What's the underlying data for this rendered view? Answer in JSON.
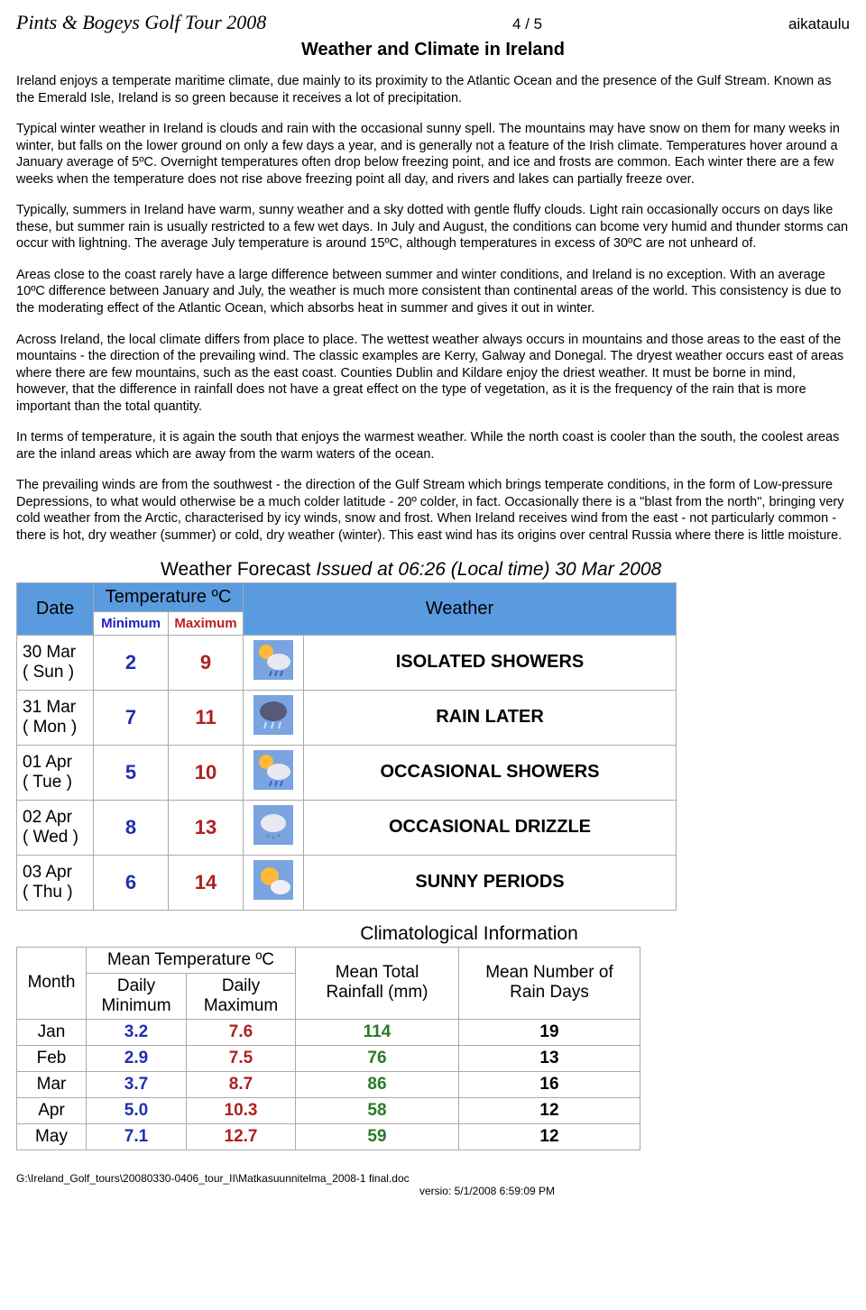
{
  "header": {
    "tour_title": "Pints & Bogeys Golf Tour 2008",
    "page_num": "4 / 5",
    "right_label": "aikataulu"
  },
  "title": "Weather and Climate in Ireland",
  "paragraphs": [
    "Ireland enjoys a temperate maritime climate, due mainly to its proximity to the Atlantic Ocean and the presence of the Gulf Stream. Known as the Emerald Isle, Ireland is so green because it receives a lot of precipitation.",
    "Typical winter weather in Ireland is clouds and rain with the occasional sunny spell. The mountains may have snow on them for many weeks in winter, but falls on the lower ground on only a few days a year, and is generally not a feature of the Irish climate. Temperatures hover around a January average of 5ºC. Overnight temperatures often drop below freezing point, and ice and frosts are common. Each winter there are a few weeks when the temperature does not rise above freezing point all day, and rivers and lakes can partially freeze over.",
    "Typically, summers in Ireland have warm, sunny weather and a sky dotted with gentle fluffy clouds. Light rain occasionally occurs on days like these, but summer rain is usually restricted to a few wet days. In July and August, the conditions can bcome very humid and thunder storms can occur with lightning. The average July temperature is around 15ºC, although temperatures in excess of 30ºC are not unheard of.",
    "Areas close to the coast rarely have a large difference between summer and winter conditions, and Ireland is no exception. With an average 10ºC difference between January and July, the weather is much more consistent than continental areas of the world. This consistency is due to the moderating effect of the Atlantic Ocean, which absorbs heat in summer and gives it out in winter.",
    "Across Ireland, the local climate differs from place to place. The wettest weather always occurs in mountains and those areas to the east of the mountains - the direction of the prevailing wind. The classic examples are Kerry, Galway and Donegal. The dryest weather occurs east of areas where there are few mountains, such as the east coast. Counties Dublin and Kildare enjoy the driest weather. It must be borne in mind, however, that the difference in rainfall does not have a great effect on the type of vegetation, as it is the frequency of the rain that is more important than the total quantity.",
    "In terms of temperature, it is again the south that enjoys the warmest weather. While the north coast is cooler than the south, the coolest areas are the inland areas which are away from the warm waters of the ocean.",
    "The prevailing winds are from the southwest - the direction of the Gulf Stream which brings temperate conditions, in the form of Low-pressure Depressions, to what would otherwise be a much colder latitude - 20º colder, in fact. Occasionally there is a \"blast from the north\", bringing very cold weather from the Arctic, characterised by icy winds, snow and frost. When Ireland receives wind from the east - not particularly common - there is hot, dry weather (summer) or cold, dry weather (winter). This east wind has its origins over central Russia where there is little moisture."
  ],
  "forecast": {
    "heading_plain": "Weather Forecast ",
    "heading_issued": "Issued at 06:26  (Local time)  30 Mar  2008",
    "headers": {
      "date": "Date",
      "temp": "Temperature ºC",
      "min": "Minimum",
      "max": "Maximum",
      "weather": "Weather"
    },
    "rows": [
      {
        "date1": "30 Mar",
        "date2": "( Sun )",
        "min": "2",
        "max": "9",
        "icon": "sun-shower",
        "weather": "ISOLATED SHOWERS"
      },
      {
        "date1": "31 Mar",
        "date2": "( Mon )",
        "min": "7",
        "max": "11",
        "icon": "rain",
        "weather": "RAIN LATER"
      },
      {
        "date1": "01 Apr",
        "date2": "( Tue )",
        "min": "5",
        "max": "10",
        "icon": "sun-shower",
        "weather": "OCCASIONAL SHOWERS"
      },
      {
        "date1": "02 Apr",
        "date2": "( Wed )",
        "min": "8",
        "max": "13",
        "icon": "drizzle",
        "weather": "OCCASIONAL DRIZZLE"
      },
      {
        "date1": "03 Apr",
        "date2": "( Thu )",
        "min": "6",
        "max": "14",
        "icon": "sunny",
        "weather": "SUNNY PERIODS"
      }
    ]
  },
  "climatology": {
    "title": "Climatological Information",
    "headers": {
      "month": "Month",
      "meantemp": "Mean Temperature ºC",
      "dmin": "Daily Minimum",
      "dmax": "Daily Maximum",
      "rain": "Mean Total Rainfall (mm)",
      "days": "Mean Number of Rain Days"
    },
    "rows": [
      {
        "month": "Jan",
        "dmin": "3.2",
        "dmax": "7.6",
        "rain": "114",
        "days": "19"
      },
      {
        "month": "Feb",
        "dmin": "2.9",
        "dmax": "7.5",
        "rain": "76",
        "days": "13"
      },
      {
        "month": "Mar",
        "dmin": "3.7",
        "dmax": "8.7",
        "rain": "86",
        "days": "16"
      },
      {
        "month": "Apr",
        "dmin": "5.0",
        "dmax": "10.3",
        "rain": "58",
        "days": "12"
      },
      {
        "month": "May",
        "dmin": "7.1",
        "dmax": "12.7",
        "rain": "59",
        "days": "12"
      }
    ]
  },
  "footer": {
    "path": "G:\\Ireland_Golf_tours\\20080330-0406_tour_II\\Matkasuunnitelma_2008-1 final.doc",
    "version": "versio: 5/1/2008  6:59:09 PM"
  },
  "icons": {
    "svg": {
      "sun-shower": "<rect width='44' height='44' fill='#7aa4e0'/><circle cx='14' cy='13' r='8' fill='#ffb838'/><ellipse cx='28' cy='24' rx='13' ry='9' fill='#e8e8f0'/><path d='M20 34 l-2 6 M26 34 l-2 6 M32 34 l-2 6' stroke='#4060c0' stroke-width='2'/>",
      "rain": "<rect width='44' height='44' fill='#7aa4e0'/><ellipse cx='22' cy='18' rx='15' ry='11' fill='#555a78'/><path d='M14 30 l-2 7 M22 30 l-2 7 M30 30 l-2 7' stroke='#d0e0ff' stroke-width='2'/>",
      "drizzle": "<rect width='44' height='44' fill='#7aa4e0'/><ellipse cx='22' cy='20' rx='14' ry='10' fill='#e8e8f0'/><circle cx='16' cy='34' r='1.4' fill='#6080c0'/><circle cx='22' cy='36' r='1.4' fill='#6080c0'/><circle cx='28' cy='34' r='1.4' fill='#6080c0'/>",
      "sunny": "<rect width='44' height='44' fill='#7aa4e0'/><circle cx='18' cy='18' r='10' fill='#ffb838'/><ellipse cx='30' cy='30' rx='11' ry='8' fill='#f0f0f8'/>"
    }
  }
}
